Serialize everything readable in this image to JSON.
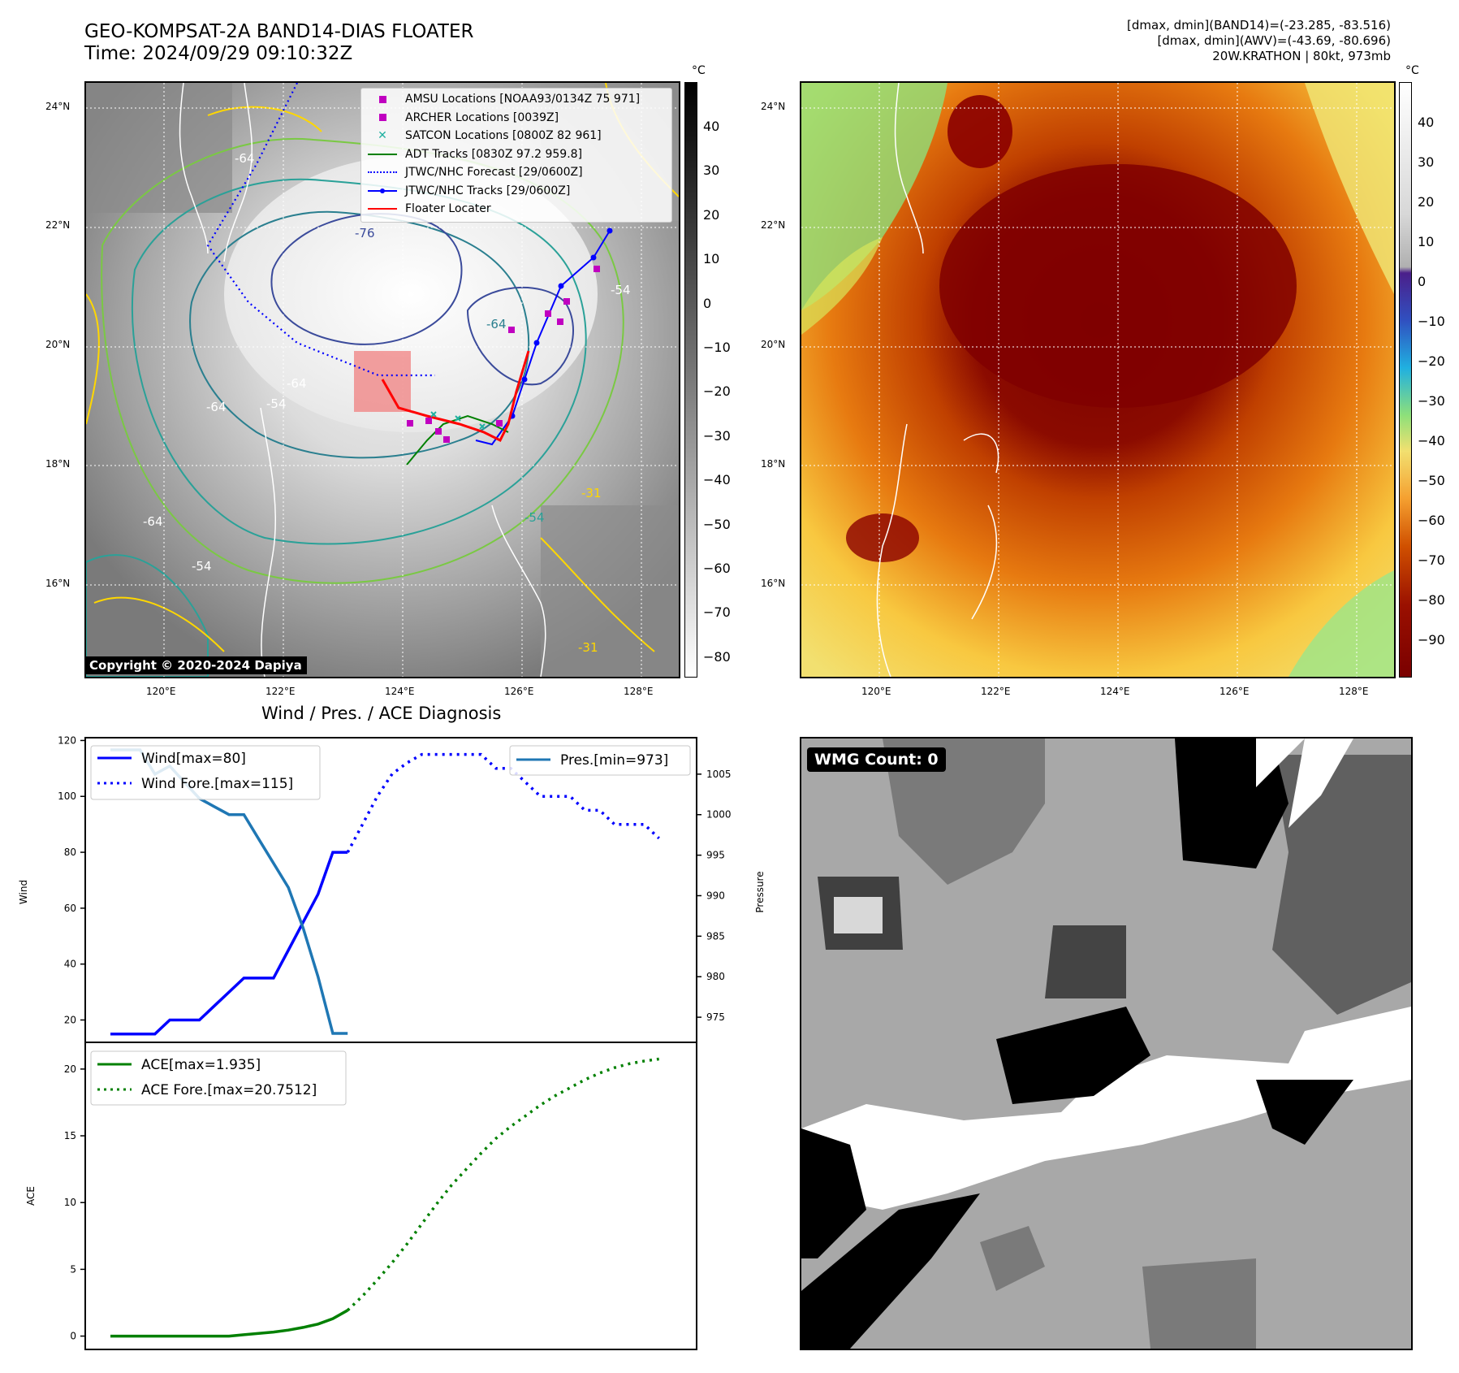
{
  "header": {
    "title_line1": "GEO-KOMPSAT-2A BAND14-DIAS FLOATER",
    "title_line2": "Time: 2024/09/29 09:10:32Z",
    "info_line1": "[dmax, dmin](BAND14)=(-23.285, -83.516)",
    "info_line2": "[dmax, dmin](AWV)=(-43.69, -80.696)",
    "info_line3": "20W.KRATHON | 80kt, 973mb"
  },
  "map": {
    "lat_labels": [
      "24°N",
      "22°N",
      "20°N",
      "18°N",
      "16°N"
    ],
    "lon_labels": [
      "120°E",
      "122°E",
      "124°E",
      "126°E",
      "128°E"
    ],
    "copyright": "Copyright © 2020-2024 Dapiya",
    "contour_labels": [
      "-64",
      "-76",
      "-64",
      "-54",
      "-64",
      "-64",
      "-54",
      "-54",
      "-31",
      "-64",
      "-54",
      "-31"
    ],
    "legend": [
      {
        "label": "AMSU Locations [NOAA93/0134Z 75 971]",
        "color": "#c000c0",
        "marker": "square"
      },
      {
        "label": "ARCHER Locations [0039Z]",
        "color": "#c000c0",
        "marker": "square"
      },
      {
        "label": "SATCON Locations [0800Z 82 961]",
        "color": "#20b0a0",
        "marker": "x"
      },
      {
        "label": "ADT Tracks [0830Z 97.2 959.8]",
        "color": "#008000",
        "marker": "line"
      },
      {
        "label": "JTWC/NHC Forecast [29/0600Z]",
        "color": "#0000ff",
        "marker": "dotted"
      },
      {
        "label": "JTWC/NHC Tracks [29/0600Z]",
        "color": "#0000ff",
        "marker": "line-dot"
      },
      {
        "label": "Floater Locater",
        "color": "#ff0000",
        "marker": "line"
      }
    ]
  },
  "colorbars": {
    "unit": "°C",
    "gray_ticks": [
      "40",
      "30",
      "20",
      "10",
      "0",
      "−10",
      "−20",
      "−30",
      "−40",
      "−50",
      "−60",
      "−70",
      "−80"
    ],
    "awv_ticks": [
      "40",
      "30",
      "20",
      "10",
      "0",
      "−10",
      "−20",
      "−30",
      "−40",
      "−50",
      "−60",
      "−70",
      "−80",
      "−90"
    ]
  },
  "diagnosis": {
    "title": "Wind / Pres. / ACE Diagnosis",
    "wind_axis_label": "Wind",
    "pressure_axis_label": "Pressure",
    "ace_axis_label": "ACE",
    "wind_ticks": [
      "120",
      "100",
      "80",
      "60",
      "40",
      "20"
    ],
    "pressure_ticks": [
      "1005",
      "1000",
      "995",
      "990",
      "985",
      "980",
      "975"
    ],
    "ace_ticks": [
      "20",
      "15",
      "10",
      "5",
      "0"
    ]
  },
  "wmg": {
    "label": "WMG Count: 0"
  },
  "colors": {
    "wind": "#0000ff",
    "pressure": "#1f77b4",
    "ace": "#008000",
    "floater": "#ff0000"
  },
  "chart_data": [
    {
      "type": "line",
      "title": "Wind / Pres. / ACE Diagnosis",
      "ylabel": "Wind",
      "ylim": [
        12,
        121
      ],
      "series": [
        {
          "name": "Wind[max=80]",
          "style": "solid",
          "color": "#0000ff",
          "x": [
            0,
            1,
            2,
            3,
            4,
            5,
            6,
            7,
            8,
            9,
            10,
            11,
            12,
            13,
            14,
            15,
            16
          ],
          "values": [
            15,
            15,
            15,
            15,
            20,
            20,
            20,
            25,
            30,
            35,
            35,
            35,
            45,
            55,
            65,
            80,
            80
          ]
        },
        {
          "name": "Wind Fore.[max=115]",
          "style": "dotted",
          "color": "#0000ff",
          "x": [
            16,
            17,
            18,
            19,
            20,
            21,
            22,
            23,
            24,
            25,
            26,
            27,
            28,
            29,
            30,
            31,
            32,
            33,
            34,
            35,
            36,
            37
          ],
          "values": [
            80,
            90,
            100,
            108,
            112,
            115,
            115,
            115,
            115,
            115,
            110,
            110,
            105,
            100,
            100,
            100,
            95,
            95,
            90,
            90,
            90,
            85
          ]
        }
      ]
    },
    {
      "type": "line",
      "ylabel": "Pressure",
      "ylim": [
        971.9,
        1009.5
      ],
      "series": [
        {
          "name": "Pres.[min=973]",
          "color": "#1f77b4",
          "x": [
            0,
            1,
            2,
            3,
            4,
            5,
            6,
            7,
            8,
            9,
            10,
            11,
            12,
            13,
            14,
            15,
            16
          ],
          "values": [
            1008,
            1008,
            1008,
            1005,
            1006,
            1004,
            1002,
            1001,
            1000,
            1000,
            997,
            994,
            991,
            986,
            980,
            973,
            973
          ]
        }
      ]
    },
    {
      "type": "line",
      "ylabel": "ACE",
      "ylim": [
        -1,
        22
      ],
      "series": [
        {
          "name": "ACE[max=1.935]",
          "style": "solid",
          "color": "#008000",
          "x": [
            0,
            1,
            2,
            3,
            4,
            5,
            6,
            7,
            8,
            9,
            10,
            11,
            12,
            13,
            14,
            15,
            16
          ],
          "values": [
            0,
            0,
            0,
            0,
            0,
            0,
            0,
            0,
            0,
            0.1,
            0.2,
            0.3,
            0.45,
            0.65,
            0.9,
            1.3,
            1.935
          ]
        },
        {
          "name": "ACE Fore.[max=20.7512]",
          "style": "dotted",
          "color": "#008000",
          "x": [
            16,
            17,
            18,
            19,
            20,
            21,
            22,
            23,
            24,
            25,
            26,
            27,
            28,
            29,
            30,
            31,
            32,
            33,
            34,
            35,
            36,
            37
          ],
          "values": [
            1.935,
            3.0,
            4.2,
            5.5,
            6.9,
            8.4,
            9.9,
            11.3,
            12.5,
            13.7,
            14.8,
            15.7,
            16.5,
            17.3,
            18.0,
            18.6,
            19.2,
            19.7,
            20.1,
            20.4,
            20.6,
            20.7512
          ]
        }
      ]
    }
  ]
}
